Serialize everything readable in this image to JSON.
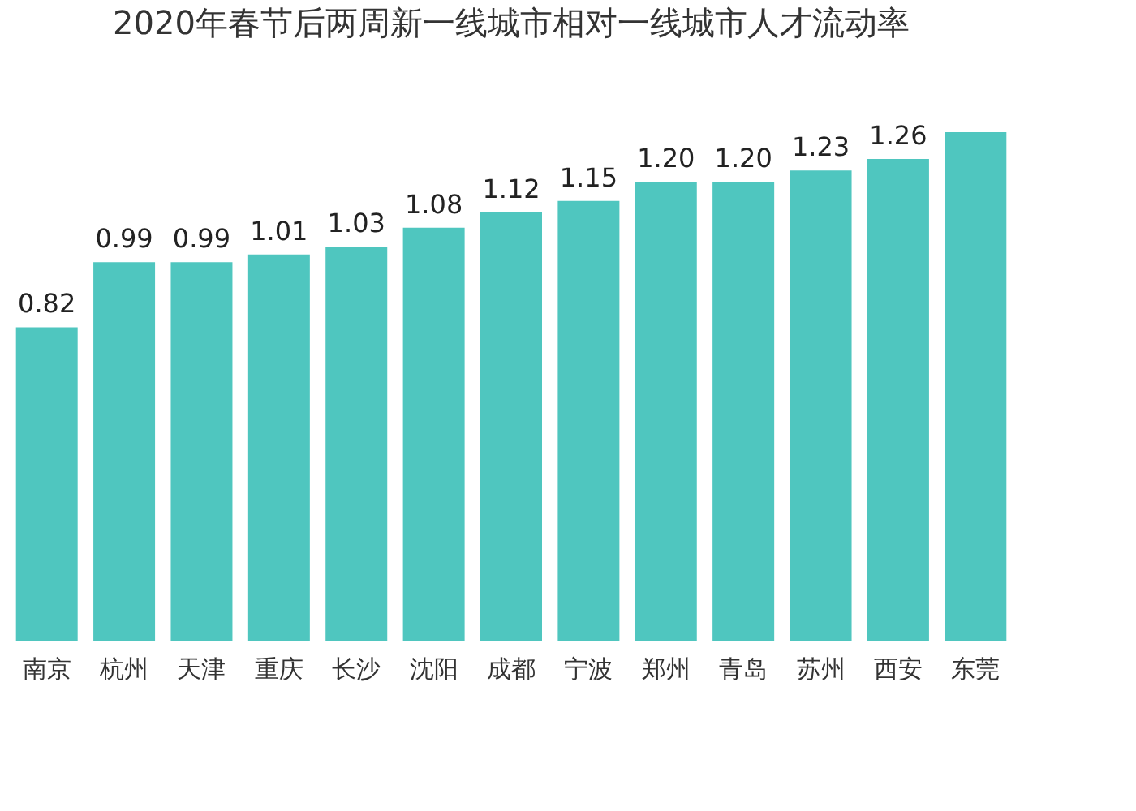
{
  "chart_data": {
    "type": "bar",
    "title": "2020年春节后两周新一线城市相对一线城市人才流动率",
    "categories": [
      "南京",
      "杭州",
      "天津",
      "重庆",
      "长沙",
      "沈阳",
      "成都",
      "宁波",
      "郑州",
      "青岛",
      "苏州",
      "西安",
      "东莞"
    ],
    "values": [
      0.82,
      0.99,
      0.99,
      1.01,
      1.03,
      1.08,
      1.12,
      1.15,
      1.2,
      1.2,
      1.23,
      1.26,
      1.33
    ],
    "value_labels": [
      "0.82",
      "0.99",
      "0.99",
      "1.01",
      "1.03",
      "1.08",
      "1.12",
      "1.15",
      "1.20",
      "1.20",
      "1.23",
      "1.26",
      null
    ],
    "color": "#4fc6bf"
  }
}
